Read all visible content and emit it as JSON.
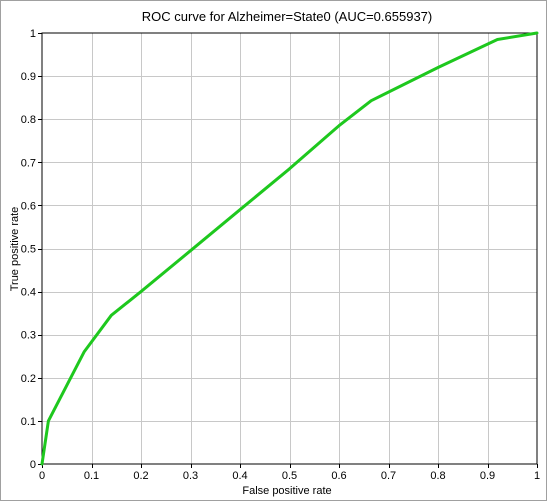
{
  "chart_data": {
    "type": "line",
    "title": "ROC curve for Alzheimer=State0 (AUC=0.655937)",
    "xlabel": "False positive rate",
    "ylabel": "True positive rate",
    "xlim": [
      0,
      1
    ],
    "ylim": [
      0,
      1
    ],
    "grid": true,
    "x_ticks": [
      "0",
      "0.1",
      "0.2",
      "0.3",
      "0.4",
      "0.5",
      "0.6",
      "0.7",
      "0.8",
      "0.9",
      "1"
    ],
    "y_ticks": [
      "0",
      "0.1",
      "0.2",
      "0.3",
      "0.4",
      "0.5",
      "0.6",
      "0.7",
      "0.8",
      "0.9",
      "1"
    ],
    "series": [
      {
        "color": "#1ec81e",
        "x": [
          0,
          0.013,
          0.085,
          0.14,
          0.2,
          0.3,
          0.4,
          0.5,
          0.6,
          0.665,
          0.8,
          0.92,
          1.0
        ],
        "y": [
          0,
          0.1,
          0.26,
          0.345,
          0.4,
          0.495,
          0.59,
          0.685,
          0.785,
          0.843,
          0.92,
          0.985,
          1.0
        ]
      }
    ]
  }
}
